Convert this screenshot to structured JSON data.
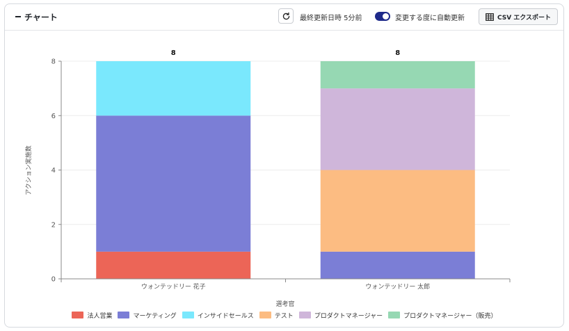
{
  "header": {
    "title": "チャート",
    "last_updated": "最終更新日時 5分前",
    "auto_refresh_label": "変更する度に自動更新",
    "auto_refresh_on": true,
    "csv_label": "CSV エクスポート"
  },
  "chart_data": {
    "type": "bar",
    "stacked": true,
    "categories": [
      "ウォンテッドリー 花子",
      "ウォンテッドリー 太郎"
    ],
    "series": [
      {
        "name": "法人営業",
        "color": "#ec6557",
        "values": [
          1,
          0
        ]
      },
      {
        "name": "マーケティング",
        "color": "#7b7ed6",
        "values": [
          5,
          1
        ]
      },
      {
        "name": "インサイドセールス",
        "color": "#7ae8fd",
        "values": [
          2,
          0
        ]
      },
      {
        "name": "テスト",
        "color": "#fcbc82",
        "values": [
          0,
          3
        ]
      },
      {
        "name": "プロダクトマネージャー",
        "color": "#cfb6da",
        "values": [
          0,
          3
        ]
      },
      {
        "name": "プロダクトマネージャー（販売）",
        "color": "#96d8b3",
        "values": [
          0,
          1
        ]
      }
    ],
    "totals": [
      "8",
      "8"
    ],
    "yticks": [
      "0",
      "2",
      "4",
      "6",
      "8"
    ],
    "ylim": [
      0,
      8
    ],
    "xlabel": "選考官",
    "ylabel": "アクション実施数",
    "legend_position": "bottom",
    "grid": true
  }
}
